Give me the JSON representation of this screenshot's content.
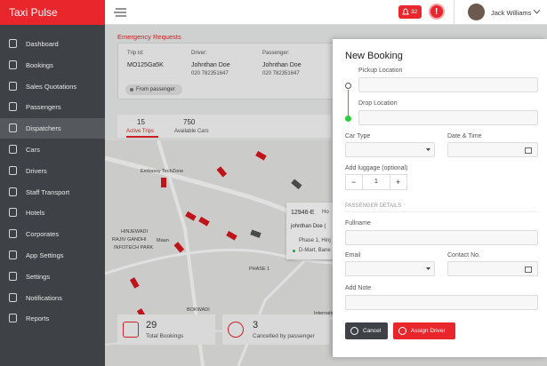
{
  "header": {
    "logo": "Taxi Pulse",
    "notifications": "32",
    "alert": "!",
    "user": "Jack Williams"
  },
  "sidebar": {
    "items": [
      "Dashboard",
      "Bookings",
      "Sales Quotations",
      "Passengers",
      "Dispatchers",
      "Cars",
      "Drivers",
      "Staff Transport",
      "Hotels",
      "Corporates",
      "App Settings",
      "Settings",
      "Notifications",
      "Reports"
    ],
    "active": 4
  },
  "emergency": {
    "title": "Emergency Requests",
    "trip_label": "Trip Id:",
    "trip_id": "MO125Ga5K",
    "driver_label": "Driver:",
    "driver_name": "Johnthan Doe",
    "driver_phone": "020 782351647",
    "passenger_label": "Passenger:",
    "passenger_name": "Johnthan Doe",
    "passenger_phone": "020 782351647",
    "source": "From passenger"
  },
  "stats": [
    {
      "value": "15",
      "label": "Active Trips"
    },
    {
      "value": "750",
      "label": "Available Cars"
    }
  ],
  "map": {
    "labels": [
      "Embassy TechZone",
      "HINJEWADI",
      "RAJIV GANDHI",
      "INFOTECH PARK",
      "Maan",
      "PHASE 1",
      "BOKWADI",
      "International Institute"
    ],
    "popup": {
      "id": "12946-E",
      "tag": "Ho",
      "driver": "johnthan Doe (",
      "stops": [
        "Phase 1, Hinj",
        "D-Mart, Bane"
      ]
    }
  },
  "summary": [
    {
      "value": "29",
      "label": "Total Bookings"
    },
    {
      "value": "3",
      "label": "Cancelled by passenger"
    }
  ],
  "booking": {
    "title": "New Booking",
    "pickup": "Pickup Location",
    "drop": "Drop Location",
    "car_type": "Car Type",
    "date_time": "Date & Time",
    "luggage": "Add luggage (optional)",
    "minus": "−",
    "count": "1",
    "plus": "+",
    "section": "PASSENGER DETAILS",
    "fullname": "Fullname",
    "email": "Email",
    "contact": "Contact No.",
    "note": "Add Note",
    "cancel": "Cancel",
    "assign": "Assign Driver"
  }
}
